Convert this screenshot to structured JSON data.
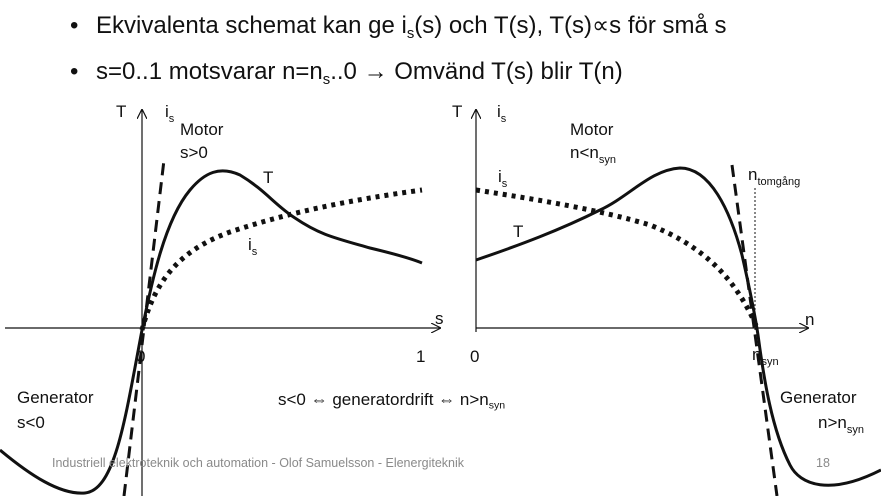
{
  "bullets": {
    "b1_a": "Ekvivalenta schemat kan ge i",
    "b1_sub": "s",
    "b1_b": "(s) och T(s), T(s)∝s för små s",
    "b2_a": "s=0..1 motsvarar n=n",
    "b2_sub": "s",
    "b2_b": "..0 → Omvänd T(s) blir T(n)"
  },
  "left_diagram": {
    "axis_T": "T",
    "axis_is": "i",
    "axis_is_sub": "s",
    "motor": "Motor",
    "motor_cond": "s>0",
    "curve_T": "T",
    "curve_is": "i",
    "curve_is_sub": "s",
    "axis_s": "s",
    "tick_0": "0",
    "tick_1": "1",
    "generator": "Generator",
    "generator_cond": "s<0"
  },
  "right_diagram": {
    "axis_T": "T",
    "axis_is": "i",
    "axis_is_sub": "s",
    "motor": "Motor",
    "motor_cond_a": "n<n",
    "motor_cond_sub": "syn",
    "curve_is": "i",
    "curve_is_sub": "s",
    "curve_T": "T",
    "n_tomgang_a": "n",
    "n_tomgang_sub": "tomgång",
    "axis_n": "n",
    "tick_0": "0",
    "tick_nsyn_a": "n",
    "tick_nsyn_sub": "syn",
    "generator": "Generator",
    "generator_cond_a": "n>n",
    "generator_cond_sub": "syn"
  },
  "middle_text": {
    "a": "s<0 ⇔ generatordrift ⇔ n>n",
    "sub": "syn"
  },
  "footer": {
    "text": "Industriell elektroteknik och automation - Olof Samuelsson - Elenergiteknik",
    "page": "18"
  }
}
